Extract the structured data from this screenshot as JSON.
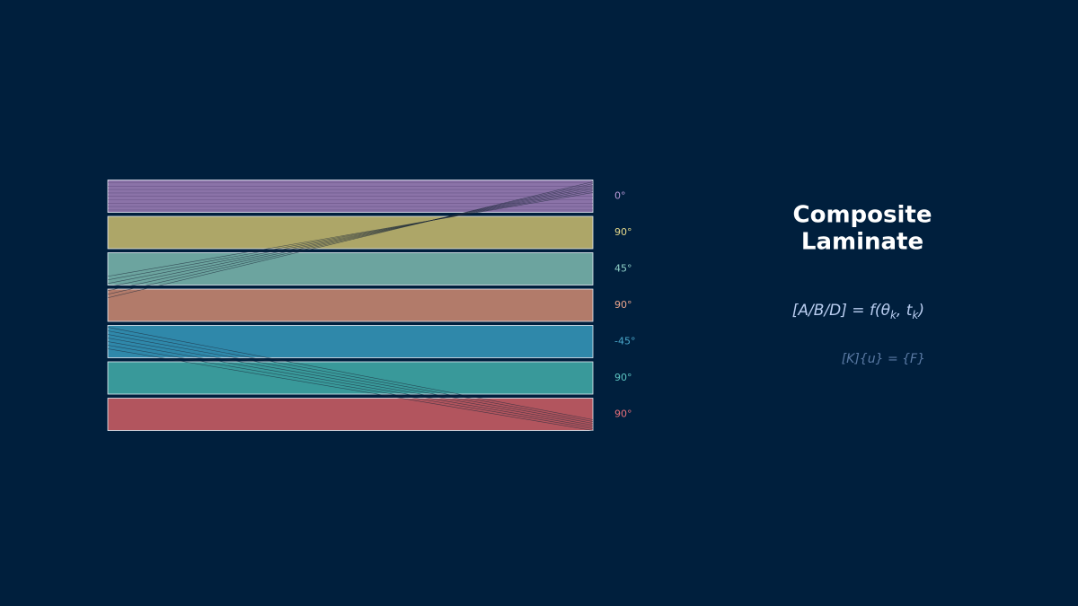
{
  "title": {
    "lines": [
      "Composite",
      "Laminate"
    ]
  },
  "layers": [
    {
      "label": "0°",
      "color": "#8b73a8",
      "label_color": "#b89ad8"
    },
    {
      "label": "90°",
      "color": "#ada668",
      "label_color": "#e4d88a"
    },
    {
      "label": "45°",
      "color": "#6ca49f",
      "label_color": "#8fd0c8"
    },
    {
      "label": "90°",
      "color": "#b27b6a",
      "label_color": "#eaa48c"
    },
    {
      "label": "-45°",
      "color": "#2f88aa",
      "label_color": "#4aa8cc"
    },
    {
      "label": "90°",
      "color": "#39999a",
      "label_color": "#5cc4c2"
    },
    {
      "label": "90°",
      "color": "#b2555e",
      "label_color": "#e8707a"
    }
  ],
  "equations": [
    [
      "[A/B/D] = f(θ",
      "k",
      ", t",
      "k",
      ")"
    ],
    [
      "[K]{u} = {F}"
    ]
  ]
}
